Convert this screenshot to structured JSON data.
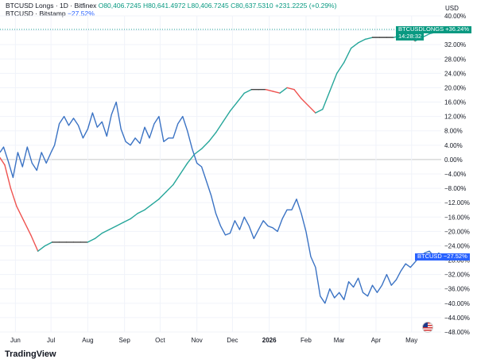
{
  "legend": {
    "longs_title": "BTCUSD Longs · 1D · Bitfinex",
    "open": "O80,406.7245",
    "high": "H80,641.4972",
    "low": "L80,406.7245",
    "close": "C80,637.5310",
    "change": "+231.2225 (+0.29%)",
    "btc_title": "BTCUSD · Bitstamp",
    "btc_pct": "−27.52%"
  },
  "currency": "USD",
  "labels": {
    "longs_tag": "BTCUSDLONGS +36.24%",
    "longs_time": "14:28:32",
    "btc_tag": "BTCUSD −27.52%"
  },
  "brand": "TradingView",
  "colors": {
    "btc": "#3b73c4",
    "longs_up": "#26a69a",
    "longs_down": "#ef5350",
    "longs_flat": "#444444",
    "grid": "#f0f3fa",
    "zero_line": "#c8c8c8",
    "longs_dotted": "#26a69a"
  },
  "icons": [
    "us-flag-icon"
  ],
  "chart_data": {
    "type": "line",
    "x_ticks": [
      "Jun",
      "Jul",
      "Aug",
      "Sep",
      "Oct",
      "Nov",
      "Dec",
      "2026",
      "Feb",
      "Mar",
      "Apr",
      "May"
    ],
    "x_range": [
      "2025-05-19",
      "2026-05-26"
    ],
    "y_ticks": [
      "40.00%",
      "36.00%",
      "32.00%",
      "28.00%",
      "24.00%",
      "20.00%",
      "16.00%",
      "12.00%",
      "8.00%",
      "4.00%",
      "0.00%",
      "−4.00%",
      "−8.00%",
      "−12.00%",
      "−16.00%",
      "−20.00%",
      "−24.00%",
      "−28.00%",
      "−32.00%",
      "−36.00%",
      "−40.00%",
      "−44.00%",
      "−48.00%"
    ],
    "ylim": [
      -48,
      40
    ],
    "y_unit": "%",
    "grid": true,
    "legend_position": "top-left",
    "series": [
      {
        "name": "BTCUSD Longs",
        "x": [
          "2025-05-19",
          "2025-05-23",
          "2025-05-28",
          "2025-06-02",
          "2025-06-08",
          "2025-06-14",
          "2025-06-20",
          "2025-06-26",
          "2025-07-02",
          "2025-07-08",
          "2025-07-14",
          "2025-07-20",
          "2025-07-26",
          "2025-08-01",
          "2025-08-07",
          "2025-08-13",
          "2025-08-19",
          "2025-08-25",
          "2025-08-31",
          "2025-09-06",
          "2025-09-12",
          "2025-09-18",
          "2025-09-24",
          "2025-09-30",
          "2025-10-06",
          "2025-10-12",
          "2025-10-18",
          "2025-10-24",
          "2025-10-30",
          "2025-11-05",
          "2025-11-11",
          "2025-11-17",
          "2025-11-23",
          "2025-11-29",
          "2025-12-05",
          "2025-12-11",
          "2025-12-17",
          "2025-12-23",
          "2025-12-29",
          "2026-01-04",
          "2026-01-10",
          "2026-01-16",
          "2026-01-22",
          "2026-01-28",
          "2026-02-03",
          "2026-02-09",
          "2026-02-15",
          "2026-02-21",
          "2026-02-27",
          "2026-03-05",
          "2026-03-11",
          "2026-03-17",
          "2026-03-23",
          "2026-03-29",
          "2026-04-04",
          "2026-04-10",
          "2026-04-16",
          "2026-04-22",
          "2026-04-28",
          "2026-05-04",
          "2026-05-10",
          "2026-05-16",
          "2026-05-22",
          "2026-05-26"
        ],
        "values": [
          0.5,
          -1.5,
          -8,
          -13,
          -17,
          -21,
          -25.5,
          -24,
          -23,
          -23,
          -23,
          -23,
          -23,
          -23,
          -22,
          -20.5,
          -19.5,
          -18.5,
          -17.5,
          -16.5,
          -15,
          -14,
          -12.5,
          -11,
          -9,
          -7,
          -4,
          -1,
          1.5,
          3,
          5,
          7.5,
          10.5,
          13.5,
          16,
          18.5,
          19.5,
          19.5,
          19.5,
          19,
          18.5,
          20,
          19.5,
          17,
          15,
          13,
          14,
          19,
          24,
          27,
          31,
          32.5,
          33.5,
          34,
          34,
          34,
          34,
          34.5,
          34.5,
          33,
          34,
          35,
          35.5,
          36.24
        ]
      },
      {
        "name": "BTCUSD",
        "x": [
          "2025-05-19",
          "2025-05-22",
          "2025-05-26",
          "2025-05-30",
          "2025-06-03",
          "2025-06-07",
          "2025-06-11",
          "2025-06-15",
          "2025-06-19",
          "2025-06-23",
          "2025-06-27",
          "2025-07-01",
          "2025-07-04",
          "2025-07-08",
          "2025-07-12",
          "2025-07-16",
          "2025-07-20",
          "2025-07-24",
          "2025-07-28",
          "2025-08-01",
          "2025-08-05",
          "2025-08-09",
          "2025-08-13",
          "2025-08-17",
          "2025-08-21",
          "2025-08-25",
          "2025-08-29",
          "2025-09-02",
          "2025-09-06",
          "2025-09-10",
          "2025-09-14",
          "2025-09-18",
          "2025-09-22",
          "2025-09-26",
          "2025-09-30",
          "2025-10-04",
          "2025-10-08",
          "2025-10-12",
          "2025-10-16",
          "2025-10-20",
          "2025-10-24",
          "2025-10-28",
          "2025-11-01",
          "2025-11-05",
          "2025-11-09",
          "2025-11-13",
          "2025-11-17",
          "2025-11-21",
          "2025-11-25",
          "2025-11-29",
          "2025-12-03",
          "2025-12-07",
          "2025-12-11",
          "2025-12-15",
          "2025-12-19",
          "2025-12-23",
          "2025-12-27",
          "2025-12-31",
          "2026-01-04",
          "2026-01-08",
          "2026-01-12",
          "2026-01-16",
          "2026-01-20",
          "2026-01-24",
          "2026-01-28",
          "2026-02-01",
          "2026-02-05",
          "2026-02-09",
          "2026-02-13",
          "2026-02-17",
          "2026-02-21",
          "2026-02-25",
          "2026-03-01",
          "2026-03-05",
          "2026-03-09",
          "2026-03-13",
          "2026-03-17",
          "2026-03-21",
          "2026-03-25",
          "2026-03-29",
          "2026-04-02",
          "2026-04-06",
          "2026-04-10",
          "2026-04-14",
          "2026-04-18",
          "2026-04-22",
          "2026-04-26",
          "2026-04-30",
          "2026-05-04",
          "2026-05-08",
          "2026-05-12",
          "2026-05-16",
          "2026-05-20",
          "2026-05-24",
          "2026-05-26"
        ],
        "values": [
          2,
          3.5,
          -0.5,
          -5,
          2,
          -2,
          3.5,
          -1,
          -3,
          2,
          -1,
          2,
          4,
          10,
          12,
          9.5,
          11.5,
          9.5,
          6,
          8.5,
          13,
          9,
          10.5,
          6.5,
          12.5,
          16,
          8.5,
          5,
          4,
          6,
          4.5,
          9,
          6,
          10,
          12,
          5,
          6,
          6,
          10,
          12,
          8,
          3,
          -1,
          -2,
          -6,
          -10,
          -15,
          -18.5,
          -21,
          -20.5,
          -17,
          -19.5,
          -16,
          -18.5,
          -22,
          -19.5,
          -17,
          -18.5,
          -19,
          -20,
          -16.5,
          -14,
          -14,
          -11,
          -15,
          -20,
          -27,
          -30,
          -38,
          -40,
          -36,
          -38.5,
          -37,
          -39,
          -34,
          -35.5,
          -33,
          -37,
          -38,
          -35,
          -37,
          -35,
          -32,
          -35,
          -33.5,
          -31,
          -29,
          -30,
          -28.5,
          -27,
          -26,
          -25.5,
          -27,
          -26,
          -27.52
        ]
      }
    ]
  }
}
